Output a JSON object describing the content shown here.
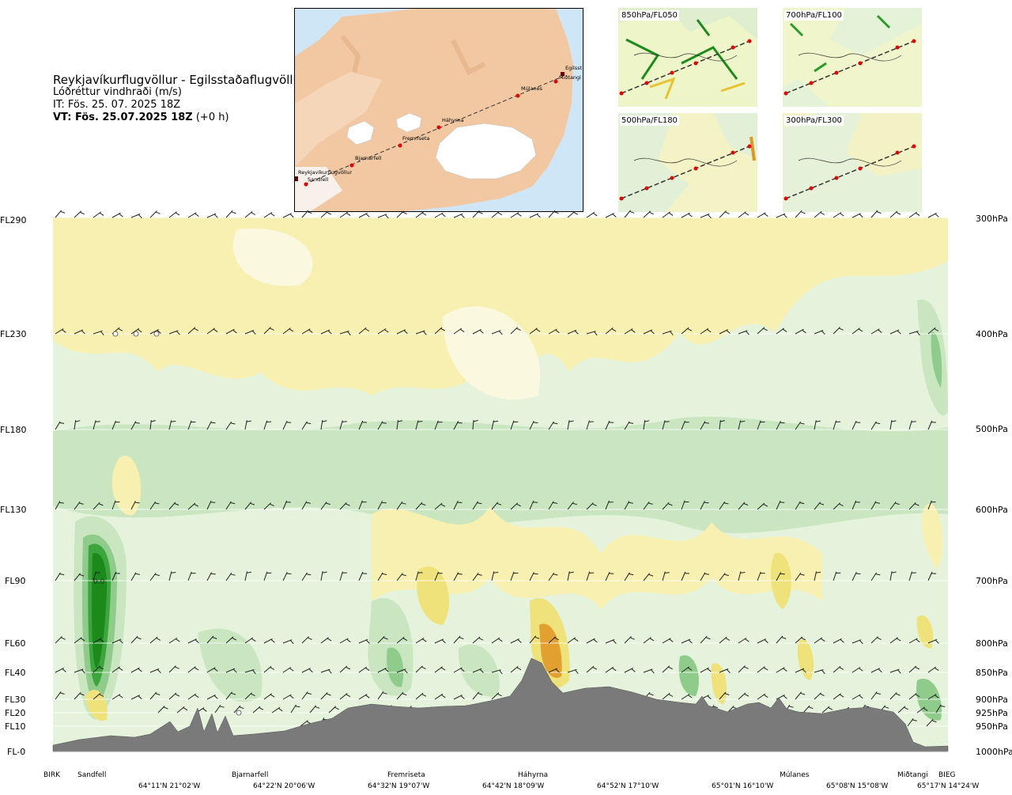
{
  "header": {
    "route": "Reykjavíkurflugvöllur - Egilsstaðaflugvöllur",
    "variable": "Lóðréttur vindhraði (m/s)",
    "it": "IT: Fös. 25. 07. 2025 18Z",
    "vt_bold": "VT: Fös. 25.07.2025 18Z",
    "vt_rest": "(+0 h)"
  },
  "map": {
    "places": [
      "Reykjavíkurflugvöllur",
      "Sandfell",
      "Bjarnarfell",
      "Fremriseta",
      "Háhyrna",
      "Múlanes",
      "Miðtangi",
      "Egilsst"
    ]
  },
  "panels": [
    {
      "label": "850hPa/FL050"
    },
    {
      "label": "700hPa/FL100"
    },
    {
      "label": "500hPa/FL180"
    },
    {
      "label": "300hPa/FL300"
    }
  ],
  "levels_left": [
    "FL290",
    "FL230",
    "FL180",
    "FL130",
    "FL90",
    "FL60",
    "FL40",
    "FL30",
    "FL20",
    "FL10",
    "FL-0"
  ],
  "levels_right": [
    "300hPa",
    "400hPa",
    "500hPa",
    "600hPa",
    "700hPa",
    "800hPa",
    "850hPa",
    "900hPa",
    "925hPa",
    "950hPa",
    "1000hPa"
  ],
  "waypoints": [
    "BIRK",
    "Sandfell",
    "Bjarnarfell",
    "Fremriseta",
    "Háhyrna",
    "Múlanes",
    "Miðtangi",
    "BIEG"
  ],
  "coords": [
    "64°11'N 21°02'W",
    "64°22'N 20°06'W",
    "64°32'N 19°07'W",
    "64°42'N 18°09'W",
    "64°52'N 17°10'W",
    "65°01'N 16°10'W",
    "65°08'N 15°08'W",
    "65°17'N 14°24'W"
  ],
  "annotation": "0.0",
  "colors": {
    "terrain": "#7a7a7a",
    "down_weak": "#f7f0b0",
    "down_mod": "#efe27a",
    "down_strong": "#e2a030",
    "up_weak": "#e6f3dc",
    "up_mod": "#c9e6c1",
    "up_strong": "#1b8a1b",
    "route": "#e00000"
  }
}
